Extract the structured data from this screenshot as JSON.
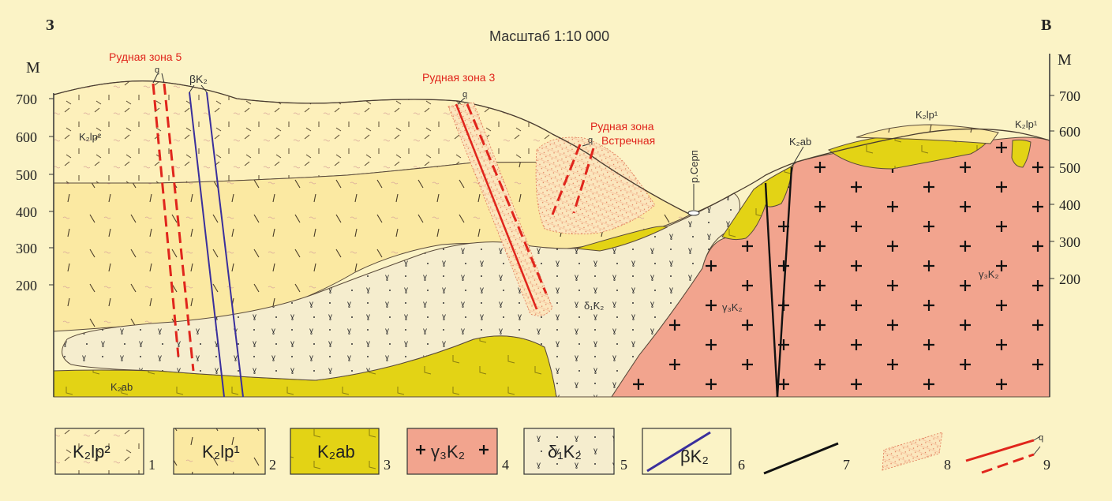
{
  "header": {
    "west": "З",
    "east": "В",
    "scale": "Масштаб 1:10 000"
  },
  "axis": {
    "unit": "М",
    "left_ticks": [
      "700",
      "600",
      "500",
      "400",
      "300",
      "200"
    ],
    "right_ticks": [
      "700",
      "600",
      "500",
      "400",
      "300",
      "200"
    ]
  },
  "ore_zones": {
    "zone5": "Рудная зона 5",
    "zone3": "Рудная зона 3",
    "vstrechnaya_1": "Рудная зона",
    "vstrechnaya_2": "Встречная",
    "q": "q"
  },
  "places": {
    "river": "р.Серп"
  },
  "units": {
    "k2lp2": "K₂lp²",
    "k2lp1": "K₂lp¹",
    "k2ab": "K₂ab",
    "gamma": "γ₃K₂",
    "delta": "δ₁K₂",
    "beta": "βK₂"
  },
  "legend": [
    {
      "num": "1"
    },
    {
      "num": "2"
    },
    {
      "num": "3"
    },
    {
      "num": "4"
    },
    {
      "num": "5"
    },
    {
      "num": "6"
    },
    {
      "num": "7"
    },
    {
      "num": "8"
    },
    {
      "num": "9"
    }
  ],
  "colors": {
    "background": "#fbf3c6",
    "lp2": "#fdf0bb",
    "lp1": "#fbeaa6",
    "ab": "#e3d315",
    "granite": "#f2a48e",
    "diorite": "#f5edce",
    "ore_red": "#e0251c",
    "dike_blue": "#3a2f9c",
    "fault": "#111111"
  }
}
